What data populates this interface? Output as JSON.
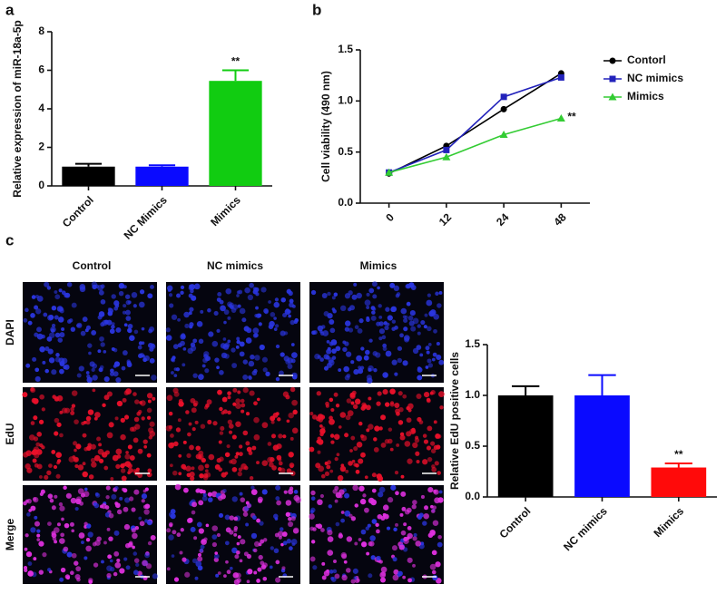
{
  "panel_labels": [
    "a",
    "b",
    "c"
  ],
  "chart_data": [
    {
      "type": "bar",
      "y_label": "Relative expression of miR-18a-5p",
      "categories": [
        "Control",
        "NC Mimics",
        "Mimics"
      ],
      "values": [
        1.0,
        1.0,
        5.45
      ],
      "errors": [
        0.15,
        0.07,
        0.55
      ],
      "colors": [
        "#000000",
        "#0a0aff",
        "#11cc11"
      ],
      "significance_labels": [
        null,
        null,
        "**"
      ],
      "ylim": [
        0,
        8
      ],
      "yticks": [
        0,
        2,
        4,
        6,
        8
      ]
    },
    {
      "type": "line",
      "y_label": "Cell viability (490 nm)",
      "categories": [
        "0",
        "12",
        "24",
        "48"
      ],
      "series": [
        {
          "name": "Contorl",
          "color": "#000000",
          "marker": "circle",
          "values": [
            0.29,
            0.56,
            0.92,
            1.27
          ]
        },
        {
          "name": "NC mimics",
          "color": "#2222bb",
          "marker": "square",
          "values": [
            0.3,
            0.52,
            1.04,
            1.23
          ]
        },
        {
          "name": "Mimics",
          "color": "#33cc33",
          "marker": "triangle",
          "values": [
            0.3,
            0.45,
            0.67,
            0.83
          ],
          "end_label": "**"
        }
      ],
      "ylim": [
        0,
        1.5
      ],
      "yticks": [
        {
          "value": 0,
          "label": "0.0"
        },
        {
          "value": 0.5,
          "label": "0.5"
        },
        {
          "value": 1,
          "label": "1.0"
        },
        {
          "value": 1.5,
          "label": "1.5"
        }
      ],
      "legend": "right"
    },
    {
      "type": "bar",
      "y_label": "Relative EdU positive cells",
      "categories": [
        "Control",
        "NC mimics",
        "Mimics"
      ],
      "values": [
        1.0,
        1.0,
        0.29
      ],
      "errors": [
        0.09,
        0.2,
        0.04
      ],
      "colors": [
        "#000000",
        "#0a0aff",
        "#ff0a0a"
      ],
      "significance_labels": [
        null,
        null,
        "**"
      ],
      "ylim": [
        0,
        1.5
      ],
      "yticks": [
        {
          "value": 0,
          "label": "0.0"
        },
        {
          "value": 0.5,
          "label": "0.5"
        },
        {
          "value": 1,
          "label": "1.0"
        },
        {
          "value": 1.5,
          "label": "1.5"
        }
      ]
    }
  ],
  "image_grid": {
    "columns": [
      "Control",
      "NC mimics",
      "Mimics"
    ],
    "rows": [
      "DAPI",
      "EdU",
      "Merge"
    ]
  }
}
